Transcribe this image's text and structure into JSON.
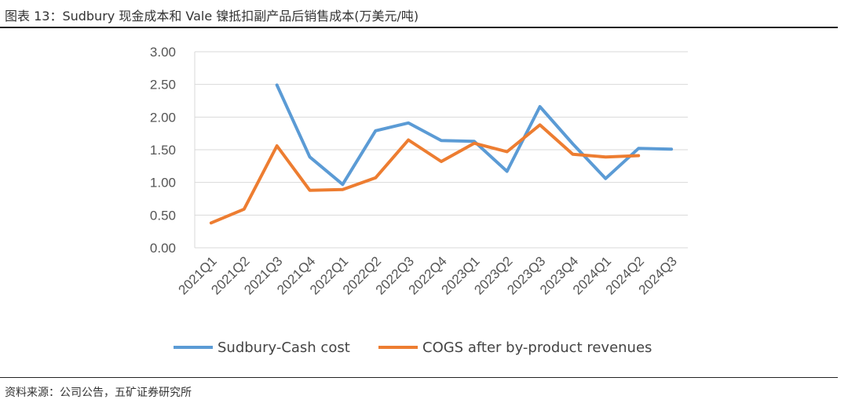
{
  "header": {
    "title": "图表 13：Sudbury 现金成本和 Vale 镍抵扣副产品后销售成本(万美元/吨)"
  },
  "footer": {
    "source": "资料来源：公司公告，五矿证券研究所"
  },
  "chart_data": {
    "type": "line",
    "title": "Sudbury 现金成本和 Vale 镍抵扣副产品后销售成本(万美元/吨)",
    "xlabel": "",
    "ylabel": "",
    "ylim": [
      0,
      3
    ],
    "yticks": [
      "0.00",
      "0.50",
      "1.00",
      "1.50",
      "2.00",
      "2.50",
      "3.00"
    ],
    "ytick_values": [
      0,
      0.5,
      1,
      1.5,
      2,
      2.5,
      3
    ],
    "grid": true,
    "legend_position": "bottom",
    "categories": [
      "2021Q1",
      "2021Q2",
      "2021Q3",
      "2021Q4",
      "2022Q1",
      "2022Q2",
      "2022Q3",
      "2022Q4",
      "2023Q1",
      "2023Q2",
      "2023Q3",
      "2023Q4",
      "2024Q1",
      "2024Q2",
      "2024Q3"
    ],
    "series": [
      {
        "name": "Sudbury-Cash cost",
        "color": "#5b9bd5",
        "values": [
          null,
          null,
          2.49,
          1.39,
          0.97,
          1.79,
          1.91,
          1.64,
          1.63,
          1.17,
          2.16,
          1.59,
          1.06,
          1.52,
          1.51
        ]
      },
      {
        "name": "COGS after by-product revenues",
        "color": "#ed7d31",
        "values": [
          0.38,
          0.59,
          1.56,
          0.88,
          0.89,
          1.07,
          1.65,
          1.32,
          1.6,
          1.47,
          1.88,
          1.43,
          1.39,
          1.41,
          null
        ]
      }
    ]
  }
}
